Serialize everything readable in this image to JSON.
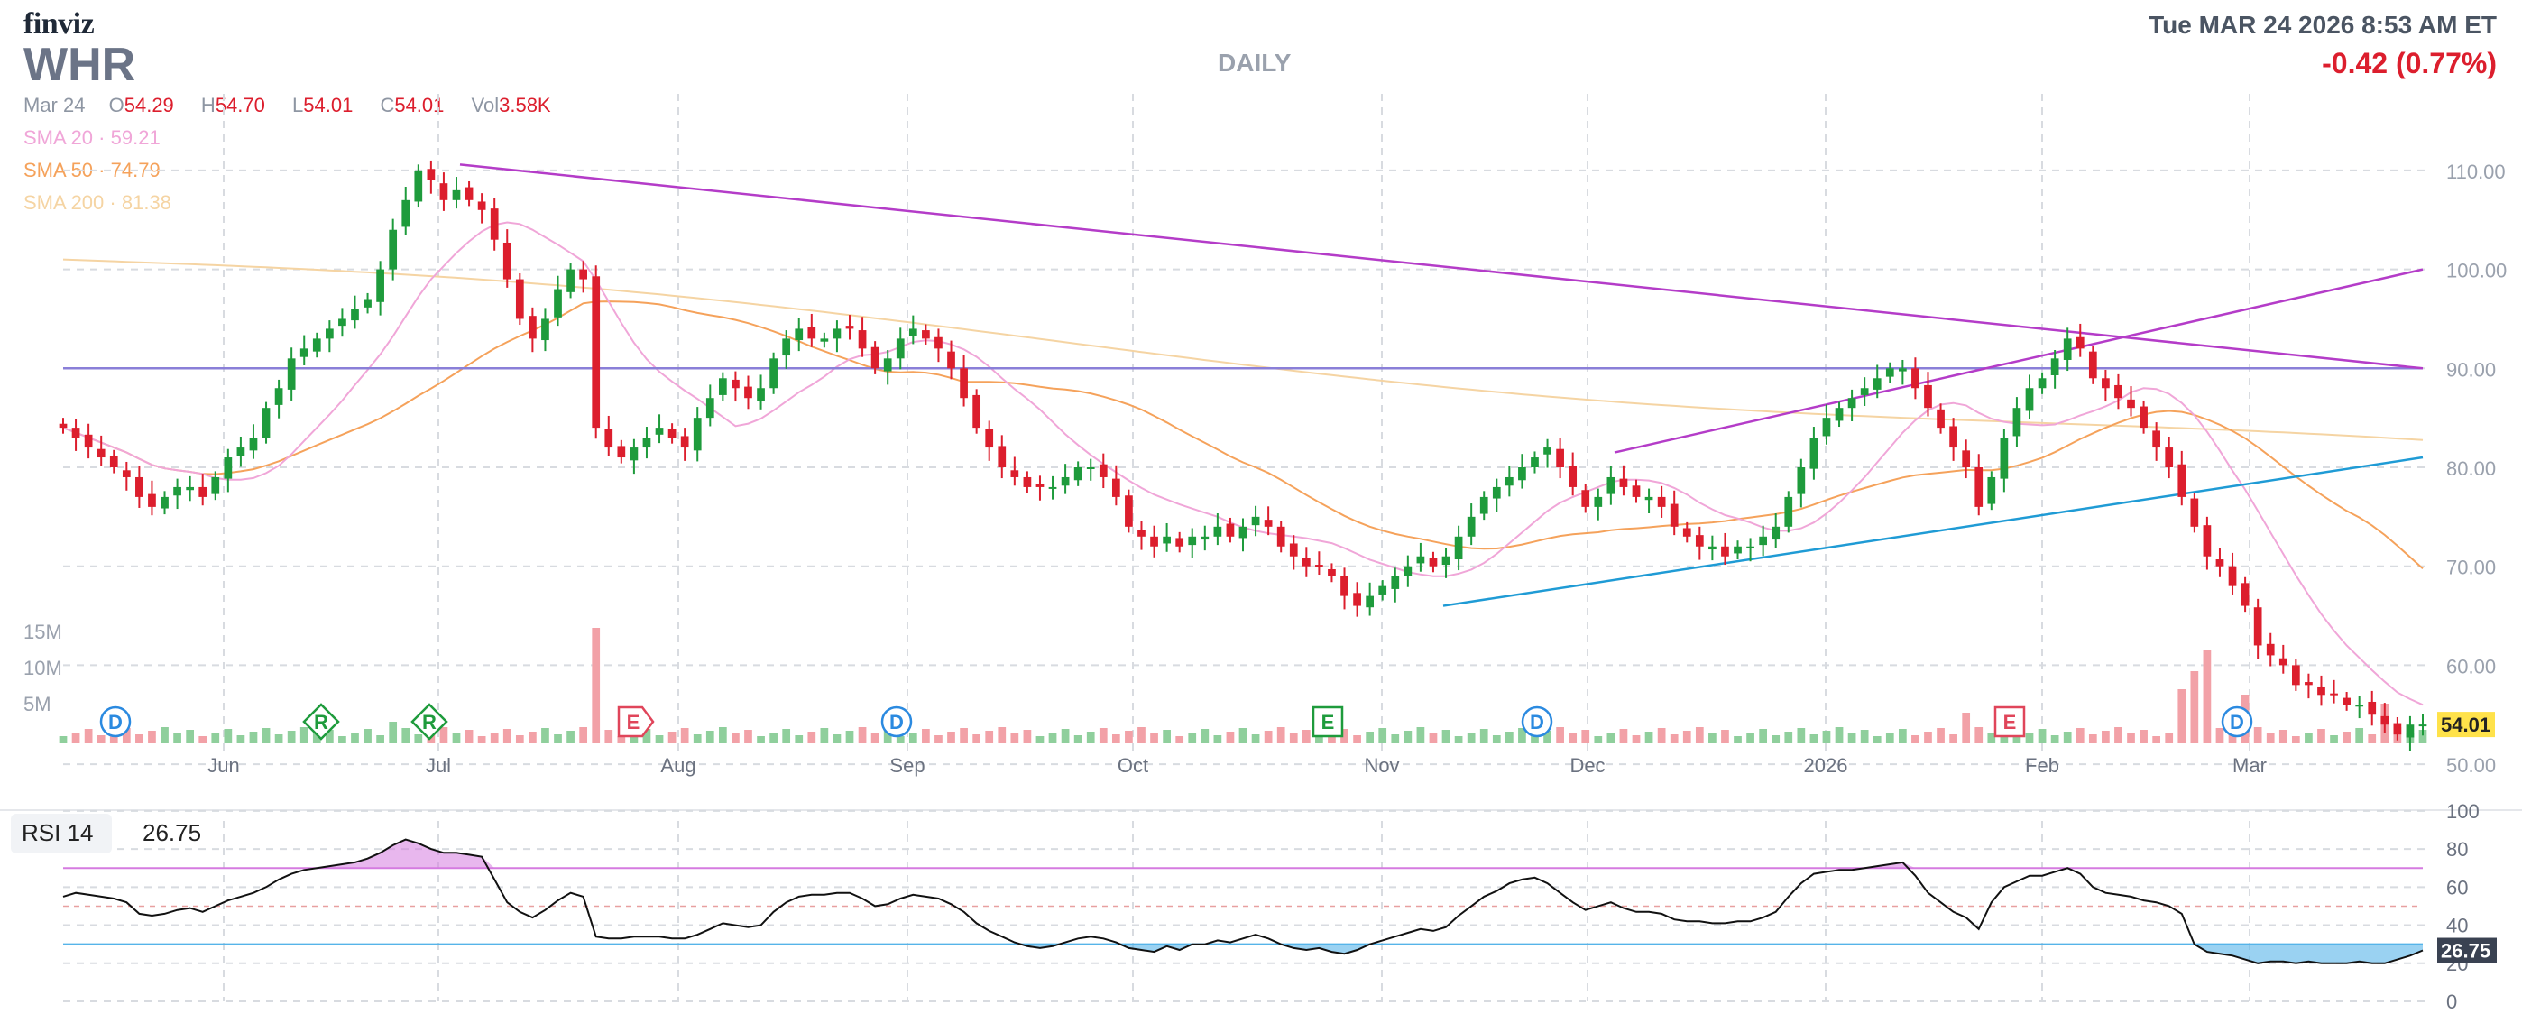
{
  "header": {
    "logo": "finviz",
    "ticker": "WHR",
    "timeframe": "DAILY",
    "datetime": "Tue MAR 24 2026 8:53 AM ET",
    "change": "-0.42 (0.77%)"
  },
  "ohlc": {
    "date": "Mar 24",
    "open_label": "O",
    "open": "54.29",
    "high_label": "H",
    "high": "54.70",
    "low_label": "L",
    "low": "54.01",
    "close_label": "C",
    "close": "54.01",
    "vol_label": "Vol",
    "vol": "3.58K"
  },
  "sma": [
    {
      "label": "SMA 20",
      "sep": "·",
      "value": "59.21",
      "color": "#f0a6d8"
    },
    {
      "label": "SMA 50",
      "sep": "·",
      "value": "74.79",
      "color": "#f5a25b"
    },
    {
      "label": "SMA 200",
      "sep": "·",
      "value": "81.38",
      "color": "#f5d4a3"
    }
  ],
  "rsi": {
    "label": "RSI 14",
    "value": "26.75"
  },
  "colors": {
    "up": "#1e9b3c",
    "down": "#dc1e2d",
    "vol_up": "#8fcf9c",
    "vol_down": "#f2a1a7",
    "trend_magenta": "#b43cc8",
    "trend_blue": "#1f9bd5",
    "hline": "#8a7fd8",
    "rsi_over": "#d57be0",
    "rsi_under": "#56b4e9",
    "price_tag_bg": "#ffe24a"
  },
  "chart_data": [
    {
      "type": "candlestick",
      "title": "WHR",
      "ylim": [
        47,
        113
      ],
      "y_ticks": [
        "110.00",
        "100.00",
        "90.00",
        "80.00",
        "70.00",
        "60.00",
        "50.00"
      ],
      "y_tick_values": [
        110,
        100,
        90,
        80,
        70,
        60,
        50
      ],
      "x_labels": [
        "Jun",
        "Jul",
        "Aug",
        "Sep",
        "Oct",
        "Nov",
        "Dec",
        "2026",
        "Feb",
        "Mar"
      ],
      "last_price": "54.01",
      "volume_axis_labels": [
        "15M",
        "10M",
        "5M"
      ],
      "events": [
        {
          "type": "D",
          "label": "D"
        },
        {
          "type": "R",
          "label": "R"
        },
        {
          "type": "R",
          "label": "R"
        },
        {
          "type": "E",
          "label": "E"
        },
        {
          "type": "D",
          "label": "D"
        },
        {
          "type": "E",
          "label": "E"
        },
        {
          "type": "D",
          "label": "D"
        },
        {
          "type": "E",
          "label": "E"
        },
        {
          "type": "D",
          "label": "D"
        }
      ],
      "close_series": [
        84,
        83,
        82,
        81,
        80,
        79,
        77,
        76,
        77,
        78,
        78,
        77,
        79,
        81,
        82,
        83,
        86,
        88,
        91,
        92,
        93,
        94,
        95,
        96,
        97,
        100,
        104,
        107,
        110,
        109,
        107,
        108,
        107,
        106,
        103,
        99,
        95,
        93,
        95,
        98,
        100,
        99,
        84,
        82,
        81,
        82,
        83,
        84,
        83,
        82,
        85,
        87,
        89,
        88,
        87,
        88,
        91,
        93,
        94,
        93,
        93,
        94,
        94,
        92,
        90,
        91,
        93,
        94,
        93,
        92,
        90,
        87,
        84,
        82,
        80,
        79,
        78,
        78,
        78,
        79,
        80,
        80,
        79,
        77,
        74,
        73,
        72,
        73,
        72,
        73,
        73,
        74,
        73,
        74,
        75,
        74,
        72,
        71,
        70,
        70,
        69,
        67,
        66,
        67,
        68,
        69,
        70,
        71,
        70,
        71,
        73,
        75,
        77,
        78,
        79,
        80,
        81,
        82,
        80,
        78,
        76,
        77,
        79,
        78,
        77,
        77,
        76,
        74,
        73,
        72,
        72,
        71,
        72,
        72,
        73,
        74,
        77,
        80,
        83,
        85,
        86,
        87,
        88,
        89,
        90,
        90,
        88,
        86,
        84,
        82,
        80,
        76,
        79,
        83,
        86,
        88,
        89,
        91,
        93,
        92,
        89,
        88,
        87,
        86,
        84,
        82,
        80,
        77,
        74,
        71,
        70,
        68,
        66,
        62,
        61,
        60,
        58,
        58,
        57,
        57,
        56,
        56,
        55,
        54,
        53,
        54,
        54.01
      ]
    },
    {
      "type": "line",
      "title": "RSI 14",
      "ylim": [
        0,
        90
      ],
      "y_ticks": [
        "100",
        "80",
        "60",
        "40",
        "20",
        "0"
      ],
      "y_tick_values": [
        100,
        80,
        60,
        40,
        20,
        0
      ],
      "overbought": 70,
      "oversold": 30,
      "last_value": "26.75",
      "values": [
        55,
        57,
        56,
        55,
        54,
        52,
        46,
        45,
        46,
        48,
        49,
        47,
        50,
        53,
        55,
        57,
        60,
        64,
        67,
        69,
        70,
        71,
        72,
        73,
        75,
        78,
        82,
        85,
        83,
        80,
        78,
        78,
        77,
        76,
        64,
        52,
        47,
        44,
        48,
        53,
        57,
        55,
        34,
        33,
        33,
        34,
        34,
        34,
        33,
        33,
        35,
        38,
        41,
        40,
        39,
        40,
        47,
        52,
        55,
        56,
        56,
        57,
        57,
        54,
        50,
        51,
        54,
        56,
        55,
        54,
        51,
        47,
        41,
        37,
        34,
        31,
        29,
        28,
        29,
        31,
        33,
        34,
        33,
        31,
        28,
        27,
        26,
        29,
        27,
        30,
        30,
        32,
        31,
        33,
        35,
        33,
        30,
        28,
        27,
        28,
        26,
        25,
        27,
        30,
        32,
        34,
        36,
        38,
        37,
        39,
        45,
        50,
        55,
        58,
        62,
        64,
        65,
        62,
        57,
        52,
        48,
        50,
        52,
        49,
        47,
        47,
        46,
        43,
        42,
        42,
        41,
        41,
        42,
        42,
        44,
        47,
        55,
        62,
        67,
        68,
        69,
        69,
        70,
        71,
        72,
        73,
        66,
        57,
        52,
        47,
        44,
        38,
        52,
        60,
        63,
        66,
        66,
        68,
        70,
        67,
        60,
        57,
        56,
        55,
        53,
        52,
        50,
        46,
        30,
        26,
        25,
        24,
        22,
        20,
        21,
        21,
        20,
        21,
        20,
        20,
        20,
        21,
        20,
        20,
        22,
        24,
        26.75
      ]
    }
  ]
}
